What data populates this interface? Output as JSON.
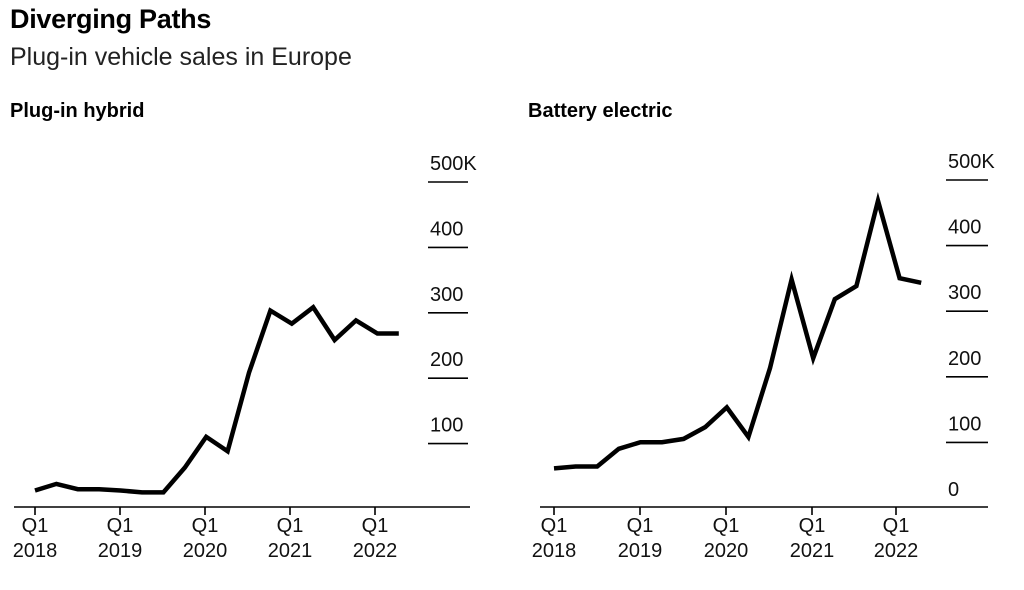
{
  "title": "Diverging Paths",
  "subtitle": "Plug-in vehicle sales in Europe",
  "chart_data": [
    {
      "type": "line",
      "title": "Plug-in hybrid",
      "x": [
        "2018 Q1",
        "2018 Q2",
        "2018 Q3",
        "2018 Q4",
        "2019 Q1",
        "2019 Q2",
        "2019 Q3",
        "2019 Q4",
        "2020 Q1",
        "2020 Q2",
        "2020 Q3",
        "2020 Q4",
        "2021 Q1",
        "2021 Q2",
        "2021 Q3",
        "2021 Q4",
        "2022 Q1",
        "2022 Q2"
      ],
      "values": [
        10,
        20,
        12,
        12,
        10,
        7,
        7,
        45,
        92,
        70,
        190,
        285,
        265,
        290,
        240,
        270,
        250,
        250
      ],
      "ylim": [
        0,
        500
      ],
      "yticks": [
        100,
        200,
        300,
        400,
        500
      ],
      "ytick_labels": [
        "100",
        "200",
        "300",
        "400",
        "500K"
      ],
      "xtick_labels": [
        [
          "Q1",
          "2018"
        ],
        [
          "Q1",
          "2019"
        ],
        [
          "Q1",
          "2020"
        ],
        [
          "Q1",
          "2021"
        ],
        [
          "Q1",
          "2022"
        ]
      ],
      "grid": false
    },
    {
      "type": "line",
      "title": "Battery electric",
      "x": [
        "2018 Q1",
        "2018 Q2",
        "2018 Q3",
        "2018 Q4",
        "2019 Q1",
        "2019 Q2",
        "2019 Q3",
        "2019 Q4",
        "2020 Q1",
        "2020 Q2",
        "2020 Q3",
        "2020 Q4",
        "2021 Q1",
        "2021 Q2",
        "2021 Q3",
        "2021 Q4",
        "2022 Q1",
        "2022 Q2"
      ],
      "values": [
        42,
        45,
        45,
        72,
        82,
        82,
        87,
        105,
        135,
        90,
        195,
        330,
        210,
        300,
        320,
        450,
        332,
        325
      ],
      "ylim": [
        0,
        500
      ],
      "yticks": [
        0,
        100,
        200,
        300,
        400,
        500
      ],
      "ytick_labels": [
        "0",
        "100",
        "200",
        "300",
        "400",
        "500K"
      ],
      "xtick_labels": [
        [
          "Q1",
          "2018"
        ],
        [
          "Q1",
          "2019"
        ],
        [
          "Q1",
          "2020"
        ],
        [
          "Q1",
          "2021"
        ],
        [
          "Q1",
          "2022"
        ]
      ],
      "grid": false
    }
  ]
}
